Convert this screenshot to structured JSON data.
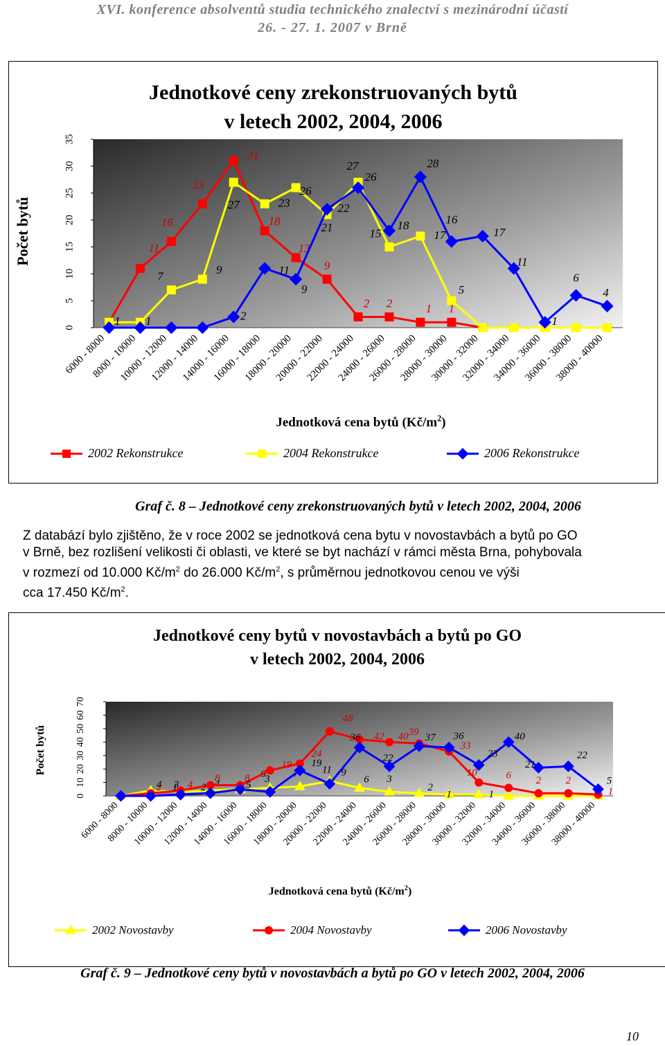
{
  "header": {
    "line1": "XVI. konference absolventů studia technického znalectví s mezinárodní účastí",
    "line2": "26. - 27. 1. 2007 v Brně"
  },
  "figure1": {
    "title_line1": "Jednotkové ceny zrekonstruovaných bytů",
    "title_line2": "v letech 2002, 2004, 2006",
    "caption": "Graf č. 8 – Jednotkové ceny zrekonstruovaných bytů v letech 2002, 2004, 2006"
  },
  "paragraph": {
    "line1": "Z databází bylo zjištěno, že v roce 2002 se jednotková cena bytu v novostavbách a bytů po GO",
    "line2": "v Brně, bez rozlišení velikosti či oblasti, ve které se byt nachází v rámci města Brna, pohybovala",
    "line3a": "v rozmezí od 10.000 Kč/m",
    "line3b": "2",
    "line3c": " do 26.000 Kč/m",
    "line3d": "2",
    "line3e": ", s průměrnou jednotkovou cenou ve výši",
    "line4a": "cca 17.450 Kč/m",
    "line4b": "2",
    "line4c": "."
  },
  "figure2": {
    "title_line1": "Jednotkové ceny bytů v novostavbách a bytů po GO",
    "title_line2": "v letech 2002, 2004, 2006",
    "caption": "Graf č. 9 – Jednotkové ceny bytů v novostavbách a bytů po GO v letech 2002, 2004, 2006"
  },
  "page_number": "10",
  "chart_data": [
    {
      "type": "line",
      "title": "Jednotkové ceny zrekonstruovaných bytů v letech 2002, 2004, 2006",
      "xlabel": "Jednotková cena bytů (Kč/m²)",
      "ylabel": "Počet bytů",
      "ylim": [
        0,
        35
      ],
      "yticks": [
        0,
        5,
        10,
        15,
        20,
        25,
        30,
        35
      ],
      "grid": false,
      "legend_position": "bottom",
      "background": "gradient-gray",
      "categories": [
        "6000 - 8000",
        "8000 - 10000",
        "10000 - 12000",
        "12000 - 14000",
        "14000 - 16000",
        "16000 - 18000",
        "18000 - 20000",
        "20000 - 22000",
        "22000 - 24000",
        "24000 - 26000",
        "26000 - 28000",
        "28000 - 30000",
        "30000 - 32000",
        "32000 - 34000",
        "34000 - 36000",
        "36000 - 38000",
        "38000 - 40000"
      ],
      "series": [
        {
          "name": "2002 Rekonstrukce",
          "color": "#ff0000",
          "marker": "square",
          "values": [
            1,
            11,
            16,
            23,
            31,
            18,
            13,
            9,
            2,
            2,
            1,
            1,
            0,
            0,
            0,
            0,
            0
          ],
          "labels": [
            "1",
            "11",
            "16",
            "23",
            "31",
            "18",
            "13",
            "9",
            "2",
            "2",
            "1",
            "1",
            "",
            "",
            "",
            "",
            ""
          ]
        },
        {
          "name": "2004 Rekonstrukce",
          "color": "#ffff00",
          "marker": "square",
          "values": [
            1,
            1,
            7,
            9,
            27,
            23,
            26,
            21,
            27,
            15,
            17,
            5,
            0,
            0,
            0,
            0,
            0
          ],
          "labels": [
            "1",
            "1",
            "7",
            "9",
            "27",
            "23",
            "26",
            "21",
            "27",
            "15",
            "17",
            "5",
            "",
            "",
            "",
            "",
            ""
          ]
        },
        {
          "name": "2006 Rekonstrukce",
          "color": "#0000ff",
          "marker": "diamond",
          "values": [
            0,
            0,
            0,
            0,
            2,
            11,
            9,
            22,
            26,
            18,
            28,
            16,
            17,
            11,
            1,
            6,
            4
          ],
          "labels": [
            "",
            "",
            "",
            "",
            "2",
            "11",
            "9",
            "22",
            "26",
            "18",
            "28",
            "16",
            "17",
            "11",
            "1",
            "6",
            "4"
          ]
        }
      ]
    },
    {
      "type": "line",
      "title": "Jednotkové ceny bytů v novostavbách a bytů po GO v letech 2002, 2004, 2006",
      "xlabel": "Jednotková cena bytů (Kč/m²)",
      "ylabel": "Počet bytů",
      "ylim": [
        0,
        70
      ],
      "yticks": [
        0,
        10,
        20,
        30,
        40,
        50,
        60,
        70
      ],
      "grid": false,
      "legend_position": "bottom",
      "background": "gradient-gray",
      "categories": [
        "6000 - 8000",
        "8000 - 10000",
        "10000 - 12000",
        "12000 - 14000",
        "14000 - 16000",
        "16000 - 18000",
        "18000 - 20000",
        "20000 - 22000",
        "22000 - 24000",
        "24000 - 26000",
        "26000 - 28000",
        "28000 - 30000",
        "30000 - 32000",
        "32000 - 34000",
        "34000 - 36000",
        "36000 - 38000",
        "38000 - 40000"
      ],
      "series": [
        {
          "name": "2002 Novostavby",
          "color": "#ffff00",
          "marker": "triangle",
          "values": [
            0,
            4,
            3,
            4,
            5,
            6,
            7,
            11,
            6,
            3,
            2,
            1,
            1,
            0,
            0,
            0,
            0
          ],
          "labels": [
            "",
            "4",
            "3",
            "4",
            "5",
            "6",
            "7",
            "11",
            "6",
            "3",
            "2",
            "1",
            "1",
            "",
            "",
            "",
            ""
          ]
        },
        {
          "name": "2004 Novostavby",
          "color": "#ff0000",
          "marker": "circle",
          "values": [
            0,
            2,
            4,
            8,
            8,
            19,
            24,
            48,
            42,
            40,
            39,
            33,
            10,
            6,
            2,
            2,
            1
          ],
          "labels": [
            "",
            "2",
            "4",
            "8",
            "8",
            "19",
            "24",
            "48",
            "42",
            "40",
            "39",
            "33",
            "10",
            "6",
            "2",
            "2",
            "1"
          ]
        },
        {
          "name": "2006 Novostavby",
          "color": "#0000ff",
          "marker": "diamond",
          "values": [
            0,
            0,
            1,
            2,
            5,
            3,
            19,
            9,
            36,
            22,
            37,
            36,
            23,
            40,
            21,
            22,
            5
          ],
          "labels": [
            "",
            "",
            "1",
            "2",
            "5",
            "3",
            "19",
            "9",
            "36",
            "22",
            "37",
            "36",
            "23",
            "40",
            "21",
            "22",
            "5"
          ]
        }
      ]
    }
  ]
}
